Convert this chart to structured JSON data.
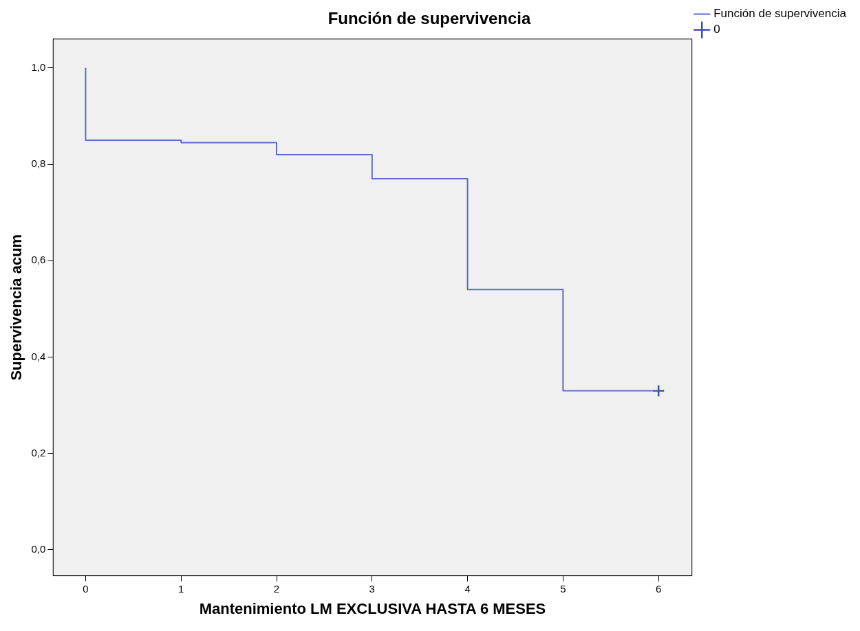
{
  "chart_data": {
    "type": "step",
    "title": "Función de supervivencia",
    "xlabel": "Mantenimiento LM EXCLUSIVA HASTA 6 MESES",
    "ylabel": "Supervivencia acum",
    "series": [
      {
        "name": "Función de supervivencia",
        "color": "#5b6fc2",
        "x": [
          0,
          0,
          1,
          2,
          3,
          4,
          5,
          6
        ],
        "values": [
          1,
          0.85,
          0.845,
          0.82,
          0.77,
          0.54,
          0.33,
          0.33
        ]
      },
      {
        "name": "0",
        "type": "scatter",
        "marker": "cross",
        "color": "#3b4fa3",
        "x": [
          6
        ],
        "values": [
          0.33
        ]
      }
    ],
    "xlim": [
      -0.34,
      6.35
    ],
    "xticks": [
      0,
      1,
      2,
      3,
      4,
      5,
      6
    ],
    "ylim": [
      -0.054,
      1.06
    ],
    "yticks": [
      {
        "value": 0,
        "label": "0,0"
      },
      {
        "value": 0.2,
        "label": "0,2"
      },
      {
        "value": 0.4,
        "label": "0,4"
      },
      {
        "value": 0.6,
        "label": "0,6"
      },
      {
        "value": 0.8,
        "label": "0,8"
      },
      {
        "value": 1,
        "label": "1,0"
      }
    ],
    "grid": false,
    "legend": "top right"
  }
}
